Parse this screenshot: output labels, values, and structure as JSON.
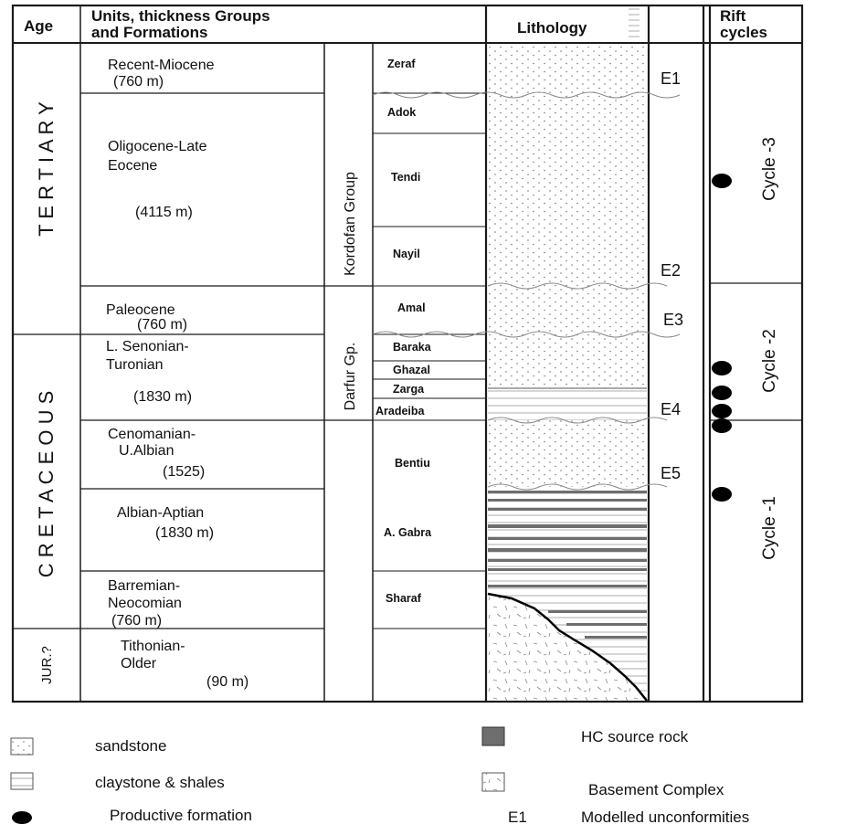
{
  "headers": {
    "age": "Age",
    "units_line1": "Units, thickness Groups",
    "units_line2": "and Formations",
    "lithology": "Lithology",
    "rift_line1": "Rift",
    "rift_line2": "cycles"
  },
  "ages": {
    "tertiary": "T E R T I A R Y",
    "cretaceous": "C R E T A C E O U S",
    "jurassic": "JUR.?"
  },
  "units": [
    {
      "line1": "Recent-Miocene",
      "line2": "(760 m)",
      "line3": ""
    },
    {
      "line1": "Oligocene-Late",
      "line2": "Eocene",
      "line3": "(4115 m)"
    },
    {
      "line1": "Paleocene",
      "line2": "(760 m)",
      "line3": ""
    },
    {
      "line1": "L. Senonian-",
      "line2": "Turonian",
      "line3": "(1830 m)"
    },
    {
      "line1": "Cenomanian-",
      "line2": "U.Albian",
      "line3": "(1525)"
    },
    {
      "line1": "Albian-Aptian",
      "line2": "(1830 m)",
      "line3": ""
    },
    {
      "line1": "Barremian-",
      "line2": "Neocomian",
      "line3": "(760 m)"
    },
    {
      "line1": "Tithonian-",
      "line2": "Older",
      "line3": "(90 m)"
    }
  ],
  "groups": {
    "kordofan": "Kordofan Group",
    "darfur": "Darfur Gp."
  },
  "formations": [
    "Zeraf",
    "Adok",
    "Tendi",
    "Nayil",
    "Amal",
    "Baraka",
    "Ghazal",
    "Zarga",
    "Aradeiba",
    "Bentiu",
    "A. Gabra",
    "Sharaf"
  ],
  "unconformities": [
    "E1",
    "E2",
    "E3",
    "E4",
    "E5"
  ],
  "rift_cycles": [
    "Cycle -3",
    "Cycle -2",
    "Cycle -1"
  ],
  "productive_formation_count": 6,
  "legend": {
    "sandstone": "sandstone",
    "claystone": "claystone & shales",
    "productive": "Productive formation",
    "hc_source": "HC source rock",
    "basement": "Basement Complex",
    "e1_symbol": "E1",
    "modelled": "Modelled unconformities"
  },
  "colors": {
    "line": "#1a1a1a",
    "source_rock": "#6e6e6e",
    "dot": "#000000"
  }
}
